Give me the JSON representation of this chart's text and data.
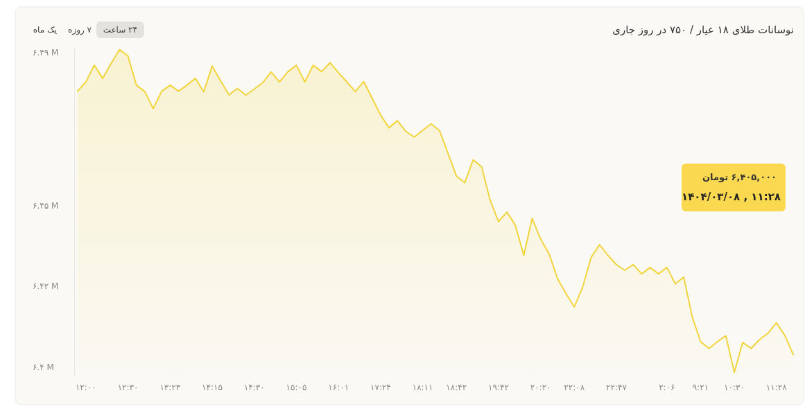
{
  "chart_data": {
    "type": "area",
    "title": "نوسانات طلای ۱۸ عیار / ۷۵۰ در روز جاری",
    "categories": [
      null,
      "۱۲:۰۰",
      null,
      null,
      null,
      null,
      "۱۲:۳۰",
      null,
      null,
      null,
      null,
      "۱۳:۲۳",
      null,
      null,
      null,
      null,
      "۱۴:۱۵",
      null,
      null,
      null,
      null,
      "۱۴:۳۰",
      null,
      null,
      null,
      null,
      "۱۵:۰۵",
      null,
      null,
      null,
      null,
      "۱۶:۰۱",
      null,
      null,
      null,
      null,
      "۱۷:۲۴",
      null,
      null,
      null,
      null,
      "۱۸:۱۱",
      null,
      null,
      null,
      "۱۸:۴۲",
      null,
      null,
      null,
      null,
      "۱۹:۴۲",
      null,
      null,
      null,
      null,
      "۲۰:۲۰",
      null,
      null,
      null,
      "۲۲:۰۸",
      null,
      null,
      null,
      null,
      "۲۲:۴۷",
      null,
      null,
      null,
      null,
      null,
      "۲:۰۶",
      null,
      null,
      null,
      "۹:۲۱",
      null,
      null,
      null,
      "۱۰:۳۰",
      null,
      null,
      null,
      null,
      "۱۱:۲۸",
      null,
      null
    ],
    "series": [
      {
        "color": "#f2d43d",
        "values": [
          6.4792,
          6.4818,
          6.4865,
          6.4828,
          6.487,
          6.4909,
          6.4891,
          6.4809,
          6.4791,
          6.4743,
          6.4792,
          6.4809,
          6.4792,
          6.4809,
          6.4828,
          6.479,
          6.4863,
          6.4821,
          6.4782,
          6.48,
          6.4781,
          6.4798,
          6.4816,
          6.4846,
          6.4818,
          6.4847,
          6.4865,
          6.4818,
          6.4865,
          6.4847,
          6.4872,
          6.4844,
          6.4818,
          6.4791,
          6.4819,
          6.4772,
          6.4725,
          6.4689,
          6.4709,
          6.4679,
          6.4663,
          6.4682,
          6.47,
          6.4681,
          6.4618,
          6.4553,
          6.4535,
          6.4599,
          6.4579,
          6.4486,
          6.4425,
          6.4452,
          6.4415,
          6.433,
          6.4434,
          6.4376,
          6.4335,
          6.4265,
          6.4223,
          6.4185,
          6.4241,
          6.4324,
          6.436,
          6.433,
          6.4304,
          6.4288,
          6.4304,
          6.4278,
          6.4296,
          6.4278,
          6.4296,
          6.425,
          6.4269,
          6.4158,
          6.4087,
          6.4068,
          6.4087,
          6.4104,
          6.4001,
          6.4085,
          6.4068,
          6.4093,
          6.4111,
          6.414,
          6.4105,
          6.4051
        ]
      }
    ],
    "yticks": [
      {
        "value": 6.4015,
        "label": "۶.۴ M"
      },
      {
        "value": 6.4243,
        "label": "۶.۴۲ M"
      },
      {
        "value": 6.4469,
        "label": "۶.۴۵ M"
      },
      {
        "value": 6.49,
        "label": "۶.۴۹ M"
      }
    ],
    "ylim": [
      6.399,
      6.4915
    ],
    "annotations": [
      "یک ماه",
      "۷ روزه",
      "۲۴ ساعت",
      "۶,۴۰۵,۰۰۰ تومان",
      "۱۴۰۴/۰۳/۰۸ , ۱۱:۲۸"
    ],
    "grid": false,
    "marker": "none",
    "line_style": "solid"
  }
}
